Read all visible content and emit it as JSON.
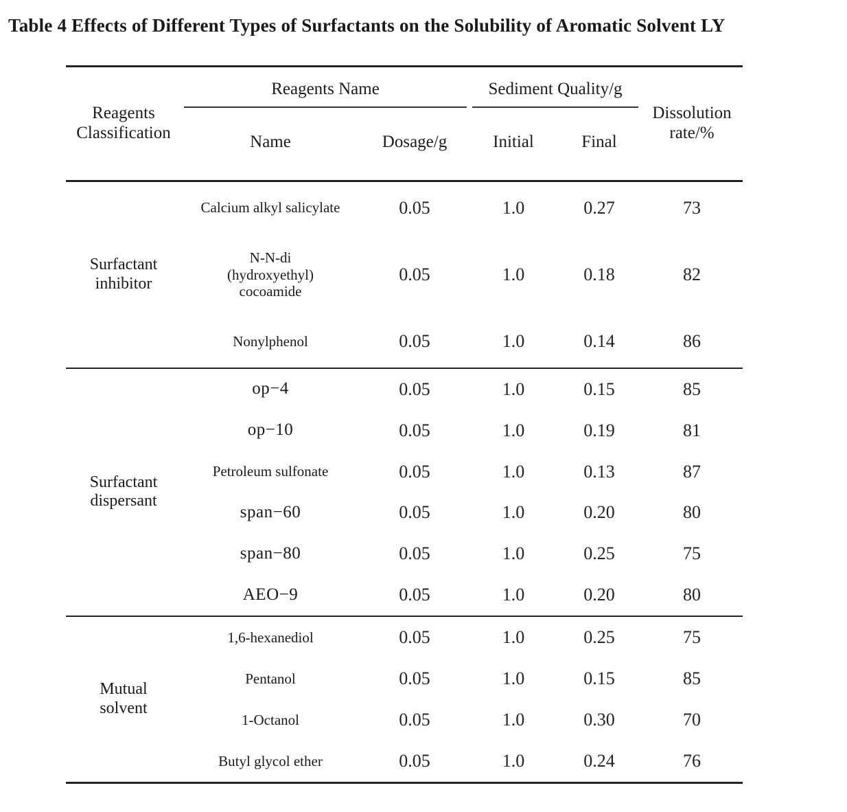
{
  "caption": "Table 4 Effects of Different Types of Surfactants on the Solubility of Aromatic Solvent LY",
  "table": {
    "header": {
      "classification": "Reagents\nClassification",
      "reagents_name": "Reagents Name",
      "sediment_quality": "Sediment Quality/g",
      "dissolution_rate": "Dissolution\nrate/%",
      "name": "Name",
      "dosage": "Dosage/g",
      "initial": "Initial",
      "final": "Final"
    },
    "groups": [
      {
        "classification": "Surfactant\ninhibitor",
        "rows": [
          {
            "name": "Calcium alkyl salicylate",
            "dosage": "0.05",
            "initial": "1.0",
            "final": "0.27",
            "rate": "73"
          },
          {
            "name": "N-N-di\n(hydroxyethyl)\ncocoamide",
            "dosage": "0.05",
            "initial": "1.0",
            "final": "0.18",
            "rate": "82"
          },
          {
            "name": "Nonylphenol",
            "dosage": "0.05",
            "initial": "1.0",
            "final": "0.14",
            "rate": "86"
          }
        ]
      },
      {
        "classification": "Surfactant\ndispersant",
        "rows": [
          {
            "name": "op−4",
            "dosage": "0.05",
            "initial": "1.0",
            "final": "0.15",
            "rate": "85"
          },
          {
            "name": "op−10",
            "dosage": "0.05",
            "initial": "1.0",
            "final": "0.19",
            "rate": "81"
          },
          {
            "name": "Petroleum sulfonate",
            "dosage": "0.05",
            "initial": "1.0",
            "final": "0.13",
            "rate": "87"
          },
          {
            "name": "span−60",
            "dosage": "0.05",
            "initial": "1.0",
            "final": "0.20",
            "rate": "80"
          },
          {
            "name": "span−80",
            "dosage": "0.05",
            "initial": "1.0",
            "final": "0.25",
            "rate": "75"
          },
          {
            "name": "AEO−9",
            "dosage": "0.05",
            "initial": "1.0",
            "final": "0.20",
            "rate": "80"
          }
        ]
      },
      {
        "classification": "Mutual\nsolvent",
        "rows": [
          {
            "name": "1,6-hexanediol",
            "dosage": "0.05",
            "initial": "1.0",
            "final": "0.25",
            "rate": "75"
          },
          {
            "name": "Pentanol",
            "dosage": "0.05",
            "initial": "1.0",
            "final": "0.15",
            "rate": "85"
          },
          {
            "name": "1-Octanol",
            "dosage": "0.05",
            "initial": "1.0",
            "final": "0.30",
            "rate": "70"
          },
          {
            "name": "Butyl glycol ether",
            "dosage": "0.05",
            "initial": "1.0",
            "final": "0.24",
            "rate": "76"
          }
        ]
      }
    ]
  }
}
